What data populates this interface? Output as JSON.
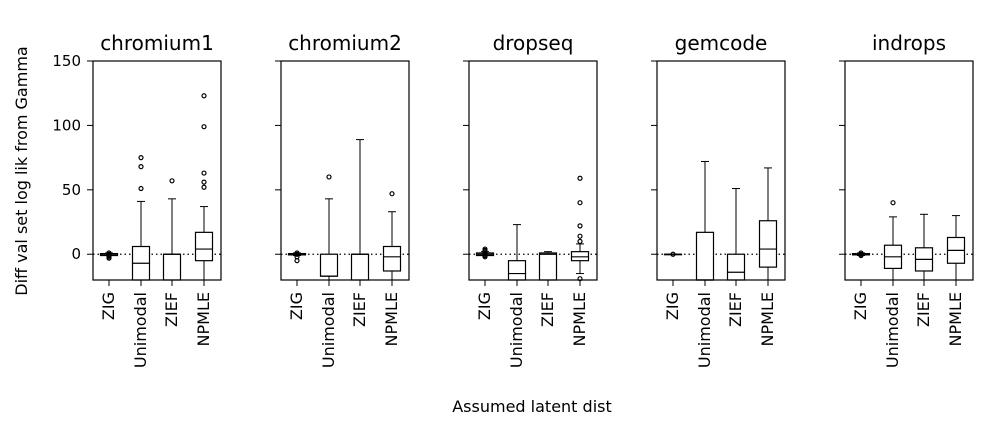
{
  "chart_data": {
    "type": "box",
    "ylabel": "Diff val set log lik from Gamma",
    "xlabel": "Assumed latent dist",
    "categories": [
      "ZIG",
      "Unimodal",
      "ZIEF",
      "NPMLE"
    ],
    "ylim": [
      -20,
      150
    ],
    "yticks": [
      0,
      50,
      100,
      150
    ],
    "reference_line": 0,
    "grid": false,
    "panels": [
      {
        "title": "chromium1",
        "boxes": [
          {
            "category": "ZIG",
            "whisker_low": -1,
            "q1": -1,
            "median": 0,
            "q3": 0.5,
            "whisker_high": 1,
            "outliers": [
              -3,
              -2,
              -1,
              0,
              1
            ]
          },
          {
            "category": "Unimodal",
            "whisker_low": -20,
            "q1": -20,
            "median": -7,
            "q3": 6,
            "whisker_high": 41,
            "outliers": [
              51,
              68,
              75
            ]
          },
          {
            "category": "ZIEF",
            "whisker_low": -20,
            "q1": -20,
            "median": 0,
            "q3": 0,
            "whisker_high": 43,
            "outliers": [
              57
            ]
          },
          {
            "category": "NPMLE",
            "whisker_low": -20,
            "q1": -5,
            "median": 4,
            "q3": 17,
            "whisker_high": 37,
            "outliers": [
              52,
              56,
              63,
              99,
              123
            ]
          }
        ]
      },
      {
        "title": "chromium2",
        "boxes": [
          {
            "category": "ZIG",
            "whisker_low": -1,
            "q1": -0.5,
            "median": 0,
            "q3": 0.5,
            "whisker_high": 1,
            "outliers": [
              -5,
              -2,
              0,
              1
            ]
          },
          {
            "category": "Unimodal",
            "whisker_low": -20,
            "q1": -17,
            "median": -17,
            "q3": 0,
            "whisker_high": 43,
            "outliers": [
              60
            ]
          },
          {
            "category": "ZIEF",
            "whisker_low": -20,
            "q1": -20,
            "median": 0,
            "q3": 0,
            "whisker_high": 89,
            "outliers": []
          },
          {
            "category": "NPMLE",
            "whisker_low": -20,
            "q1": -13,
            "median": -2,
            "q3": 6,
            "whisker_high": 33,
            "outliers": [
              47
            ]
          }
        ]
      },
      {
        "title": "dropseq",
        "boxes": [
          {
            "category": "ZIG",
            "whisker_low": -1,
            "q1": -1,
            "median": 0,
            "q3": 1,
            "whisker_high": 2,
            "outliers": [
              -2,
              -1,
              0,
              1,
              2,
              3,
              4
            ]
          },
          {
            "category": "Unimodal",
            "whisker_low": -20,
            "q1": -20,
            "median": -15,
            "q3": -5,
            "whisker_high": 23,
            "outliers": []
          },
          {
            "category": "ZIEF",
            "whisker_low": -20,
            "q1": -20,
            "median": 0,
            "q3": 1,
            "whisker_high": 2,
            "outliers": []
          },
          {
            "category": "NPMLE",
            "whisker_low": -15,
            "q1": -5,
            "median": -2,
            "q3": 2,
            "whisker_high": 8,
            "outliers": [
              -19,
              10,
              14,
              22,
              40,
              59
            ]
          }
        ]
      },
      {
        "title": "gemcode",
        "boxes": [
          {
            "category": "ZIG",
            "whisker_low": 0,
            "q1": 0,
            "median": 0,
            "q3": 0,
            "whisker_high": 0,
            "outliers": [
              0
            ]
          },
          {
            "category": "Unimodal",
            "whisker_low": -20,
            "q1": -20,
            "median": -20,
            "q3": 17,
            "whisker_high": 72,
            "outliers": []
          },
          {
            "category": "ZIEF",
            "whisker_low": -20,
            "q1": -20,
            "median": -14,
            "q3": 0,
            "whisker_high": 51,
            "outliers": []
          },
          {
            "category": "NPMLE",
            "whisker_low": -20,
            "q1": -10,
            "median": 4,
            "q3": 26,
            "whisker_high": 67,
            "outliers": []
          }
        ]
      },
      {
        "title": "indrops",
        "boxes": [
          {
            "category": "ZIG",
            "whisker_low": -1,
            "q1": -0.5,
            "median": 0,
            "q3": 0.5,
            "whisker_high": 1,
            "outliers": [
              -1,
              0,
              1
            ]
          },
          {
            "category": "Unimodal",
            "whisker_low": -20,
            "q1": -11,
            "median": -2,
            "q3": 7,
            "whisker_high": 29,
            "outliers": [
              40
            ]
          },
          {
            "category": "ZIEF",
            "whisker_low": -20,
            "q1": -13,
            "median": -4,
            "q3": 5,
            "whisker_high": 31,
            "outliers": []
          },
          {
            "category": "NPMLE",
            "whisker_low": -20,
            "q1": -7,
            "median": 3,
            "q3": 13,
            "whisker_high": 30,
            "outliers": []
          }
        ]
      }
    ]
  }
}
